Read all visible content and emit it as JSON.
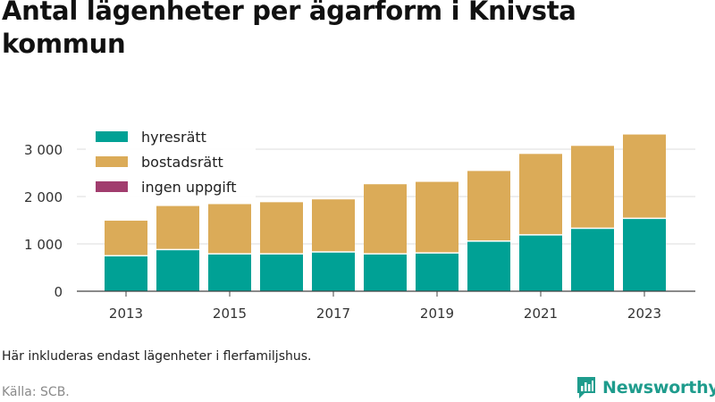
{
  "title": "Antal lägenheter per ägarform i Knivsta kommun",
  "note": "Här inkluderas endast lägenheter i flerfamiljshus.",
  "source": "Källa: SCB.",
  "logo": {
    "text": "Newsworthy",
    "icon": "bar-chart-logo-icon",
    "color": "#1f9c8d"
  },
  "chart_data": {
    "type": "bar",
    "stacked": true,
    "categories": [
      "2013",
      "2014",
      "2015",
      "2016",
      "2017",
      "2018",
      "2019",
      "2020",
      "2021",
      "2022",
      "2023"
    ],
    "x_tick_labels": [
      "2013",
      "2015",
      "2017",
      "2019",
      "2021",
      "2023"
    ],
    "y_ticks": [
      0,
      1000,
      2000,
      3000
    ],
    "y_tick_labels": [
      "0",
      "1 000",
      "2 000",
      "3 000"
    ],
    "ylim": [
      0,
      3400
    ],
    "grid": true,
    "legend_position": "top-left",
    "series": [
      {
        "name": "hyresrätt",
        "color": "#00a195",
        "values": [
          750,
          880,
          790,
          790,
          830,
          790,
          810,
          1060,
          1190,
          1330,
          1540
        ]
      },
      {
        "name": "bostadsrätt",
        "color": "#dbab58",
        "values": [
          740,
          920,
          1050,
          1090,
          1110,
          1470,
          1500,
          1480,
          1710,
          1740,
          1770
        ]
      },
      {
        "name": "ingen uppgift",
        "color": "#a13d6e",
        "values": [
          0,
          0,
          0,
          0,
          0,
          0,
          0,
          0,
          0,
          0,
          0
        ]
      }
    ]
  }
}
